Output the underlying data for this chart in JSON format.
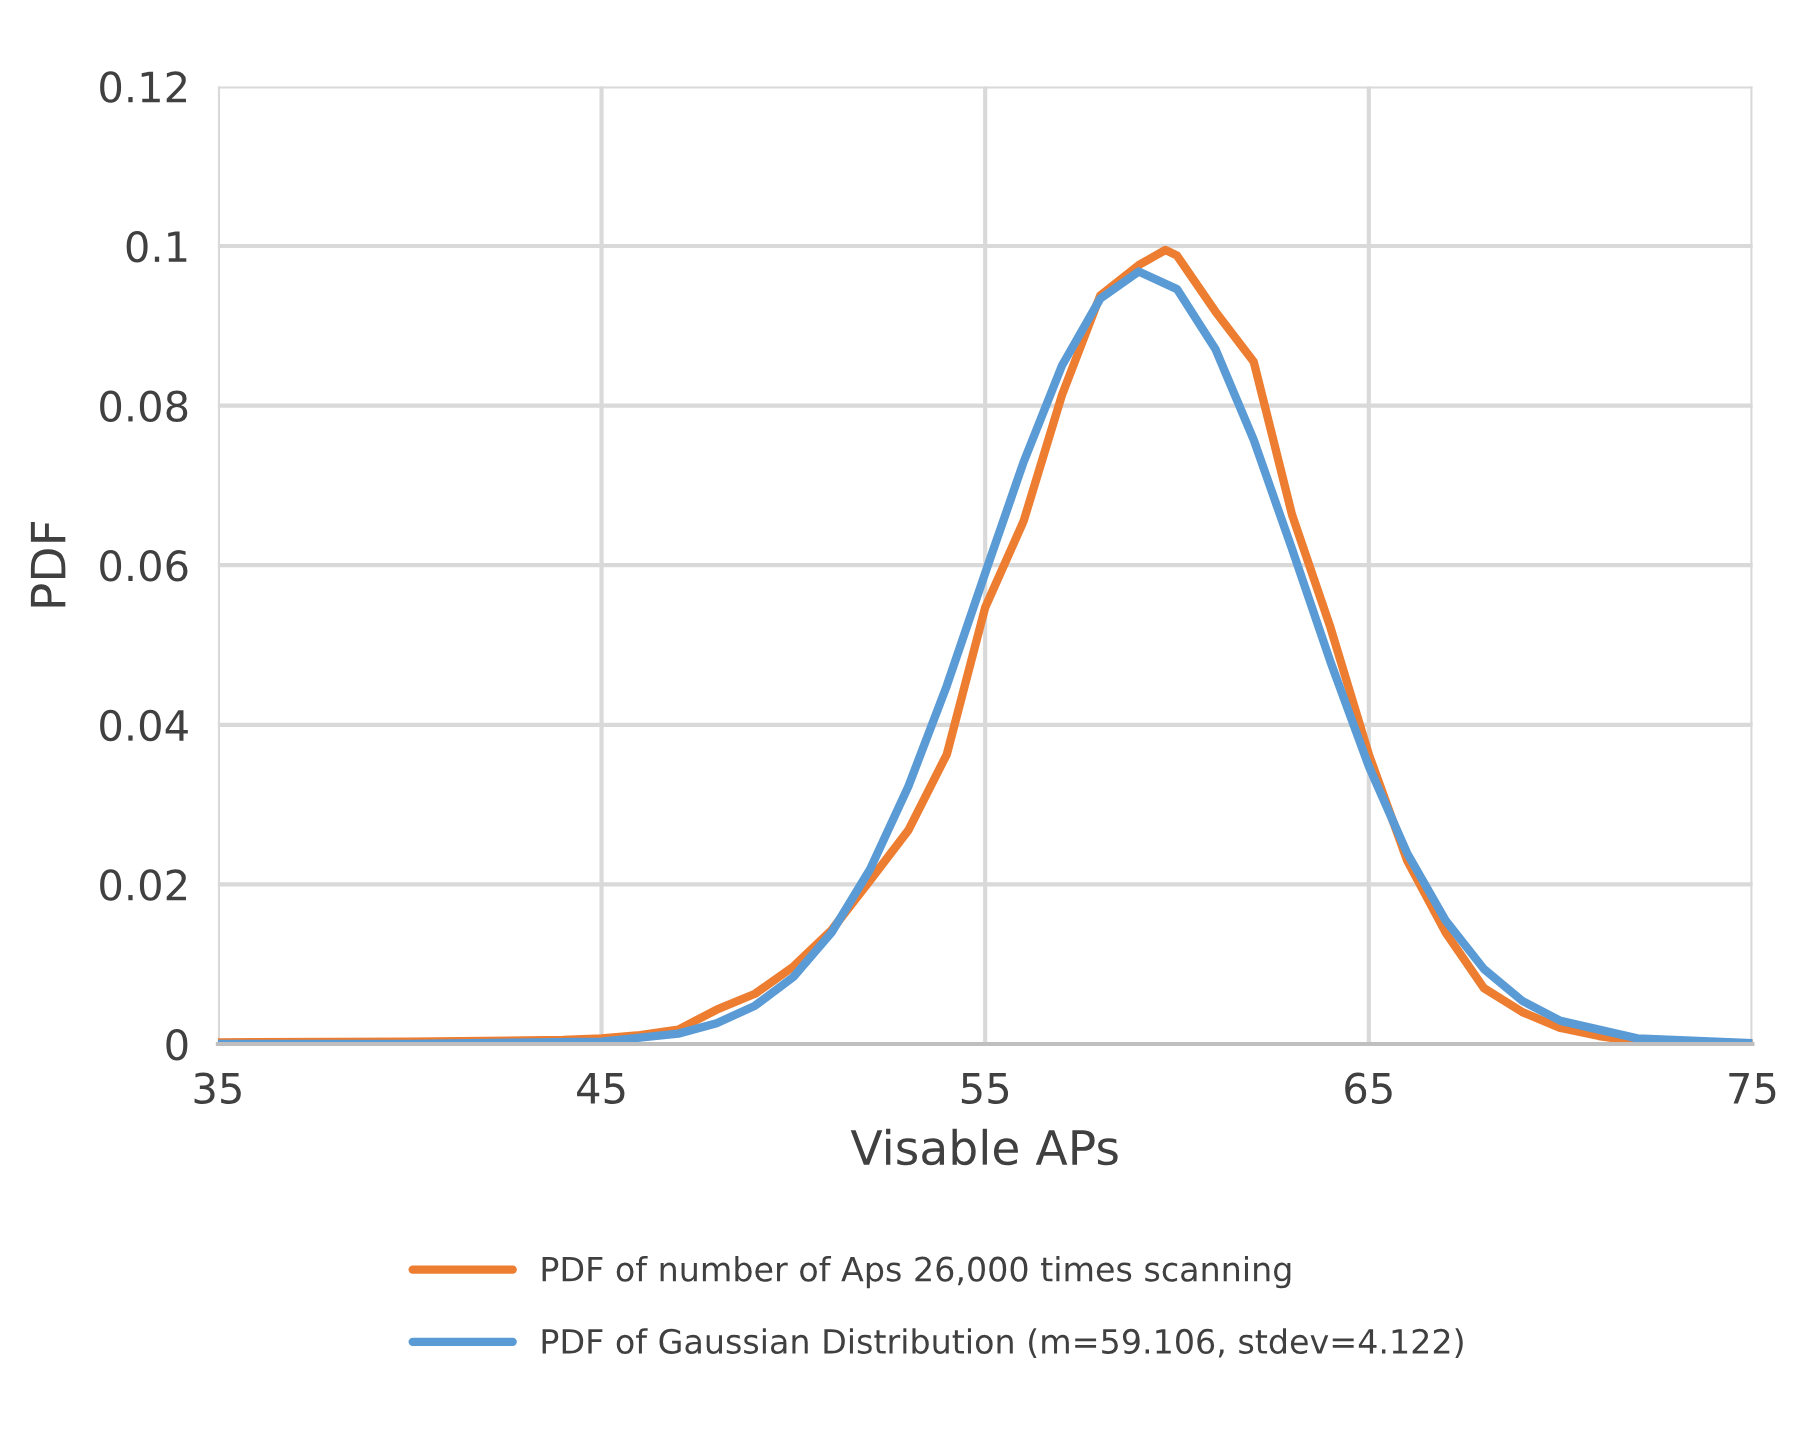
{
  "chart_data": {
    "type": "line",
    "xlabel": "Visable APs",
    "ylabel": "PDF",
    "xlim": [
      35,
      75
    ],
    "xticks": [
      35,
      45,
      55,
      65,
      75
    ],
    "ylim": [
      0,
      0.12
    ],
    "yticks": [
      0,
      0.02,
      0.04,
      0.06,
      0.08,
      0.1,
      0.12
    ],
    "grid": true,
    "legend": "bottom",
    "marker": "none",
    "line_style": "solid",
    "series": [
      {
        "name": "PDF of number of Aps 26,000 times scanning",
        "color": "#ed7d31",
        "x": [
          35,
          40,
          44,
          45,
          46,
          47,
          48,
          49,
          50,
          51,
          52,
          53,
          54,
          55,
          56,
          57,
          58,
          59,
          59.7,
          60,
          61,
          62,
          63,
          64,
          65,
          66,
          67,
          68,
          69,
          70,
          71,
          72,
          75
        ],
        "values": [
          0.0002,
          0.0003,
          0.0005,
          0.0007,
          0.0011,
          0.0018,
          0.0043,
          0.0063,
          0.0097,
          0.0143,
          0.0205,
          0.0268,
          0.0363,
          0.0547,
          0.0655,
          0.0813,
          0.0938,
          0.0976,
          0.0995,
          0.0988,
          0.0918,
          0.0855,
          0.0663,
          0.0522,
          0.0363,
          0.023,
          0.014,
          0.007,
          0.004,
          0.002,
          0.001,
          0.0003,
          0
        ]
      },
      {
        "name": "PDF of Gaussian Distribution (m=59.106, stdev=4.122)",
        "color": "#5b9bd5",
        "x": [
          35,
          40,
          45,
          47,
          48,
          49,
          50,
          51,
          52,
          53,
          54,
          55,
          56,
          57,
          58,
          59,
          60,
          61,
          62,
          63,
          64,
          65,
          66,
          67,
          68,
          69,
          70,
          72,
          75
        ],
        "values": [
          0,
          0,
          0.0003,
          0.0013,
          0.0026,
          0.0048,
          0.0084,
          0.014,
          0.0219,
          0.0323,
          0.0449,
          0.059,
          0.0729,
          0.085,
          0.0934,
          0.0968,
          0.0946,
          0.0871,
          0.0757,
          0.062,
          0.0479,
          0.0348,
          0.0239,
          0.0155,
          0.0094,
          0.0054,
          0.0029,
          0.0007,
          0.0001
        ]
      }
    ]
  }
}
